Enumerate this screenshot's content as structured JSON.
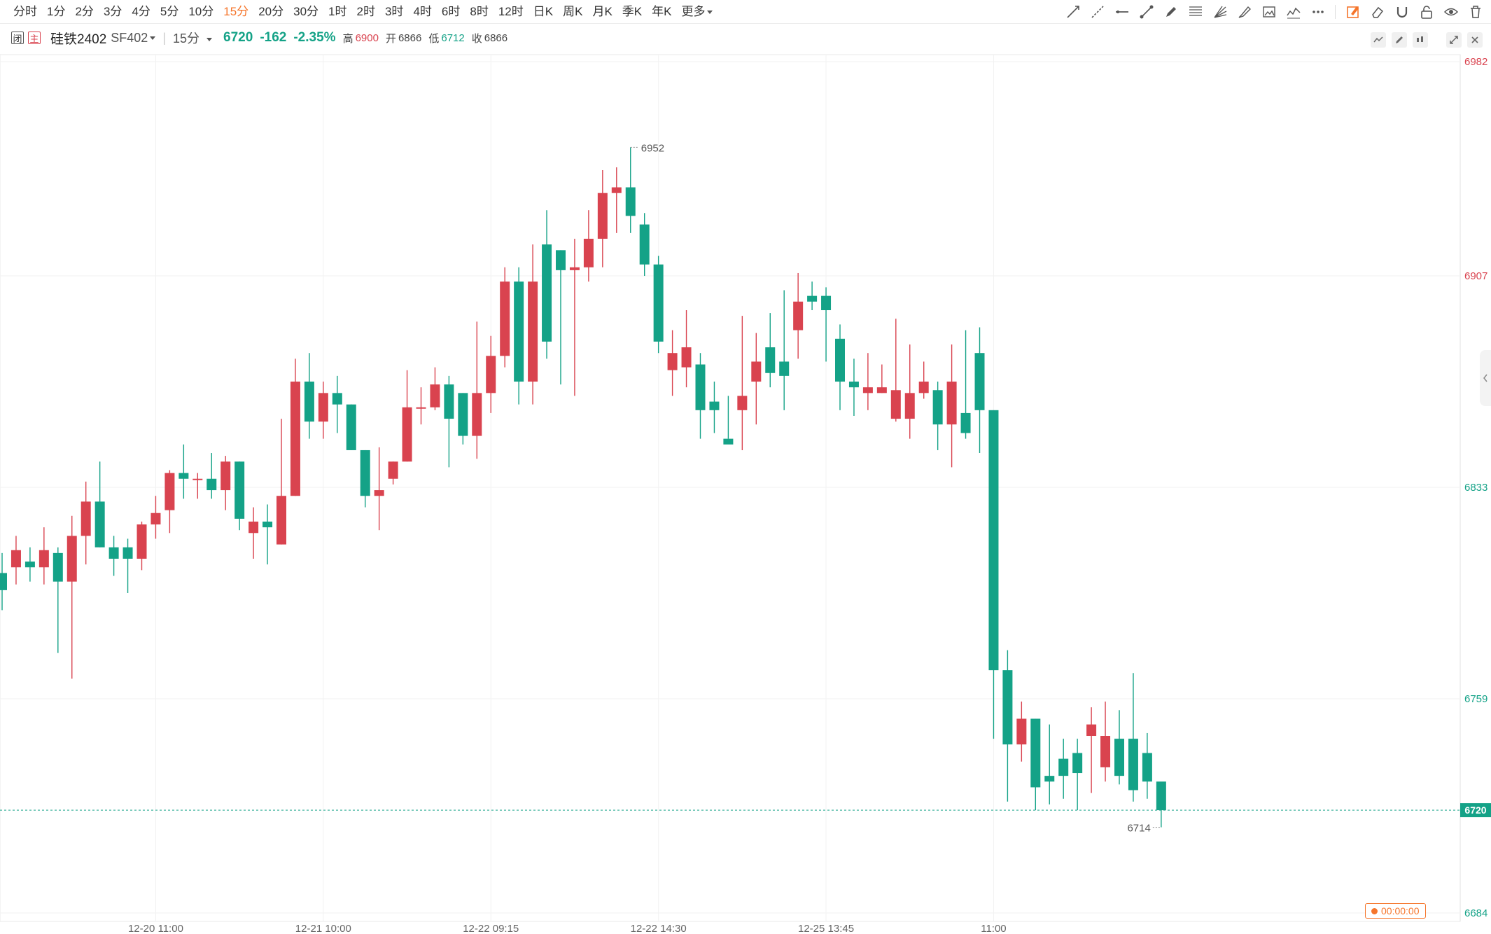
{
  "toolbar": {
    "periods": [
      "分时",
      "1分",
      "2分",
      "3分",
      "4分",
      "5分",
      "10分",
      "15分",
      "20分",
      "30分",
      "1时",
      "2时",
      "3时",
      "4时",
      "6时",
      "8时",
      "12时",
      "日K",
      "周K",
      "月K",
      "季K",
      "年K",
      "更多"
    ],
    "active_period": "15分",
    "tools": [
      "trend-line-icon",
      "ray-line-icon",
      "horizontal-line-icon",
      "segment-icon",
      "pen-icon",
      "fibonacci-icon",
      "fan-icon",
      "brush-icon",
      "image-icon",
      "wave-icon",
      "more-dots-icon",
      "draw-mode-icon",
      "eraser-icon",
      "magnet-icon",
      "lock-icon",
      "eye-icon",
      "trash-icon"
    ],
    "active_tool": "draw-mode-icon"
  },
  "info": {
    "badge1": "闭",
    "badge2": "主",
    "symbol": "硅铁2402",
    "code": "SF402",
    "interval": "15分",
    "last": "6720",
    "change": "-162",
    "change_pct": "-2.35%",
    "high_label": "高",
    "high": "6900",
    "open_label": "开",
    "open": "6866",
    "low_label": "低",
    "low": "6712",
    "close_label": "收",
    "close": "6866"
  },
  "timer": "00:00:00",
  "colors": {
    "up": "#d9434f",
    "down": "#14a287",
    "accent": "#f5752b",
    "grid": "#f2f2f2"
  },
  "chart_data": {
    "type": "candlestick",
    "ylim": [
      6684,
      6982
    ],
    "y_ticks": [
      6982,
      6907,
      6833,
      6759,
      6684
    ],
    "last_price": 6720,
    "max_label": "6952",
    "min_label": "6714",
    "x_labels": [
      {
        "label": "12-20 11:00",
        "index": 11
      },
      {
        "label": "12-21 10:00",
        "index": 23
      },
      {
        "label": "12-22 09:15",
        "index": 35
      },
      {
        "label": "12-22 14:30",
        "index": 47
      },
      {
        "label": "12-25 13:45",
        "index": 59
      },
      {
        "label": "11:00",
        "index": 71
      }
    ],
    "candles": [
      [
        6803,
        6797,
        6810,
        6790
      ],
      [
        6805,
        6811,
        6816,
        6799
      ],
      [
        6807,
        6805,
        6812,
        6800
      ],
      [
        6805,
        6811,
        6819,
        6799
      ],
      [
        6810,
        6800,
        6812,
        6775
      ],
      [
        6800,
        6816,
        6823,
        6766
      ],
      [
        6816,
        6828,
        6835,
        6806
      ],
      [
        6828,
        6812,
        6842,
        6812
      ],
      [
        6812,
        6808,
        6816,
        6802
      ],
      [
        6812,
        6808,
        6815,
        6796
      ],
      [
        6808,
        6820,
        6821,
        6804
      ],
      [
        6820,
        6824,
        6830,
        6815
      ],
      [
        6825,
        6838,
        6839,
        6817
      ],
      [
        6838,
        6836,
        6848,
        6829
      ],
      [
        6836,
        6836,
        6838,
        6829
      ],
      [
        6836,
        6832,
        6845,
        6829
      ],
      [
        6832,
        6842,
        6844,
        6825
      ],
      [
        6842,
        6822,
        6842,
        6818
      ],
      [
        6817,
        6821,
        6826,
        6808
      ],
      [
        6821,
        6819,
        6827,
        6806
      ],
      [
        6813,
        6830,
        6857,
        6813
      ],
      [
        6830,
        6870,
        6878,
        6830
      ],
      [
        6870,
        6856,
        6880,
        6850
      ],
      [
        6856,
        6866,
        6870,
        6850
      ],
      [
        6866,
        6862,
        6872,
        6852
      ],
      [
        6862,
        6846,
        6862,
        6846
      ],
      [
        6846,
        6830,
        6846,
        6826
      ],
      [
        6830,
        6832,
        6847,
        6818
      ],
      [
        6836,
        6842,
        6842,
        6834
      ],
      [
        6842,
        6861,
        6874,
        6842
      ],
      [
        6861,
        6861,
        6868,
        6855
      ],
      [
        6861,
        6869,
        6875,
        6860
      ],
      [
        6869,
        6857,
        6872,
        6840
      ],
      [
        6866,
        6851,
        6866,
        6848
      ],
      [
        6851,
        6866,
        6891,
        6843
      ],
      [
        6866,
        6879,
        6886,
        6859
      ],
      [
        6879,
        6905,
        6910,
        6875
      ],
      [
        6905,
        6870,
        6910,
        6862
      ],
      [
        6870,
        6905,
        6918,
        6862
      ],
      [
        6918,
        6884,
        6930,
        6878
      ],
      [
        6916,
        6909,
        6916,
        6869
      ],
      [
        6909,
        6910,
        6920,
        6865
      ],
      [
        6910,
        6920,
        6930,
        6905
      ],
      [
        6920,
        6936,
        6944,
        6910
      ],
      [
        6936,
        6938,
        6945,
        6922
      ],
      [
        6938,
        6928,
        6952,
        6922
      ],
      [
        6925,
        6911,
        6929,
        6907
      ],
      [
        6911,
        6884,
        6914,
        6880
      ],
      [
        6874,
        6880,
        6888,
        6865
      ],
      [
        6875,
        6882,
        6895,
        6868
      ],
      [
        6876,
        6860,
        6880,
        6850
      ],
      [
        6863,
        6860,
        6870,
        6852
      ],
      [
        6850,
        6848,
        6865,
        6850
      ],
      [
        6860,
        6865,
        6893,
        6846
      ],
      [
        6870,
        6877,
        6887,
        6855
      ],
      [
        6882,
        6873,
        6894,
        6868
      ],
      [
        6877,
        6872,
        6902,
        6860
      ],
      [
        6888,
        6898,
        6908,
        6878
      ],
      [
        6900,
        6898,
        6905,
        6895
      ],
      [
        6900,
        6895,
        6903,
        6877
      ],
      [
        6885,
        6870,
        6890,
        6860
      ],
      [
        6870,
        6868,
        6878,
        6858
      ],
      [
        6866,
        6868,
        6880,
        6860
      ],
      [
        6866,
        6868,
        6876,
        6866
      ],
      [
        6857,
        6867,
        6892,
        6856
      ],
      [
        6857,
        6866,
        6883,
        6850
      ],
      [
        6866,
        6870,
        6877,
        6864
      ],
      [
        6867,
        6855,
        6870,
        6846
      ],
      [
        6855,
        6870,
        6883,
        6840
      ],
      [
        6859,
        6852,
        6888,
        6850
      ],
      [
        6880,
        6860,
        6889,
        6845
      ],
      [
        6860,
        6769,
        6860,
        6745
      ],
      [
        6769,
        6743,
        6776,
        6723
      ],
      [
        6743,
        6752,
        6758,
        6737
      ],
      [
        6752,
        6728,
        6752,
        6720
      ],
      [
        6732,
        6730,
        6750,
        6722
      ],
      [
        6738,
        6732,
        6745,
        6724
      ],
      [
        6740,
        6733,
        6745,
        6720
      ],
      [
        6746,
        6750,
        6756,
        6726
      ],
      [
        6735,
        6746,
        6758,
        6730
      ],
      [
        6745,
        6732,
        6755,
        6729
      ],
      [
        6745,
        6727,
        6768,
        6723
      ],
      [
        6740,
        6730,
        6747,
        6724
      ],
      [
        6730,
        6720,
        6727,
        6714
      ]
    ]
  }
}
